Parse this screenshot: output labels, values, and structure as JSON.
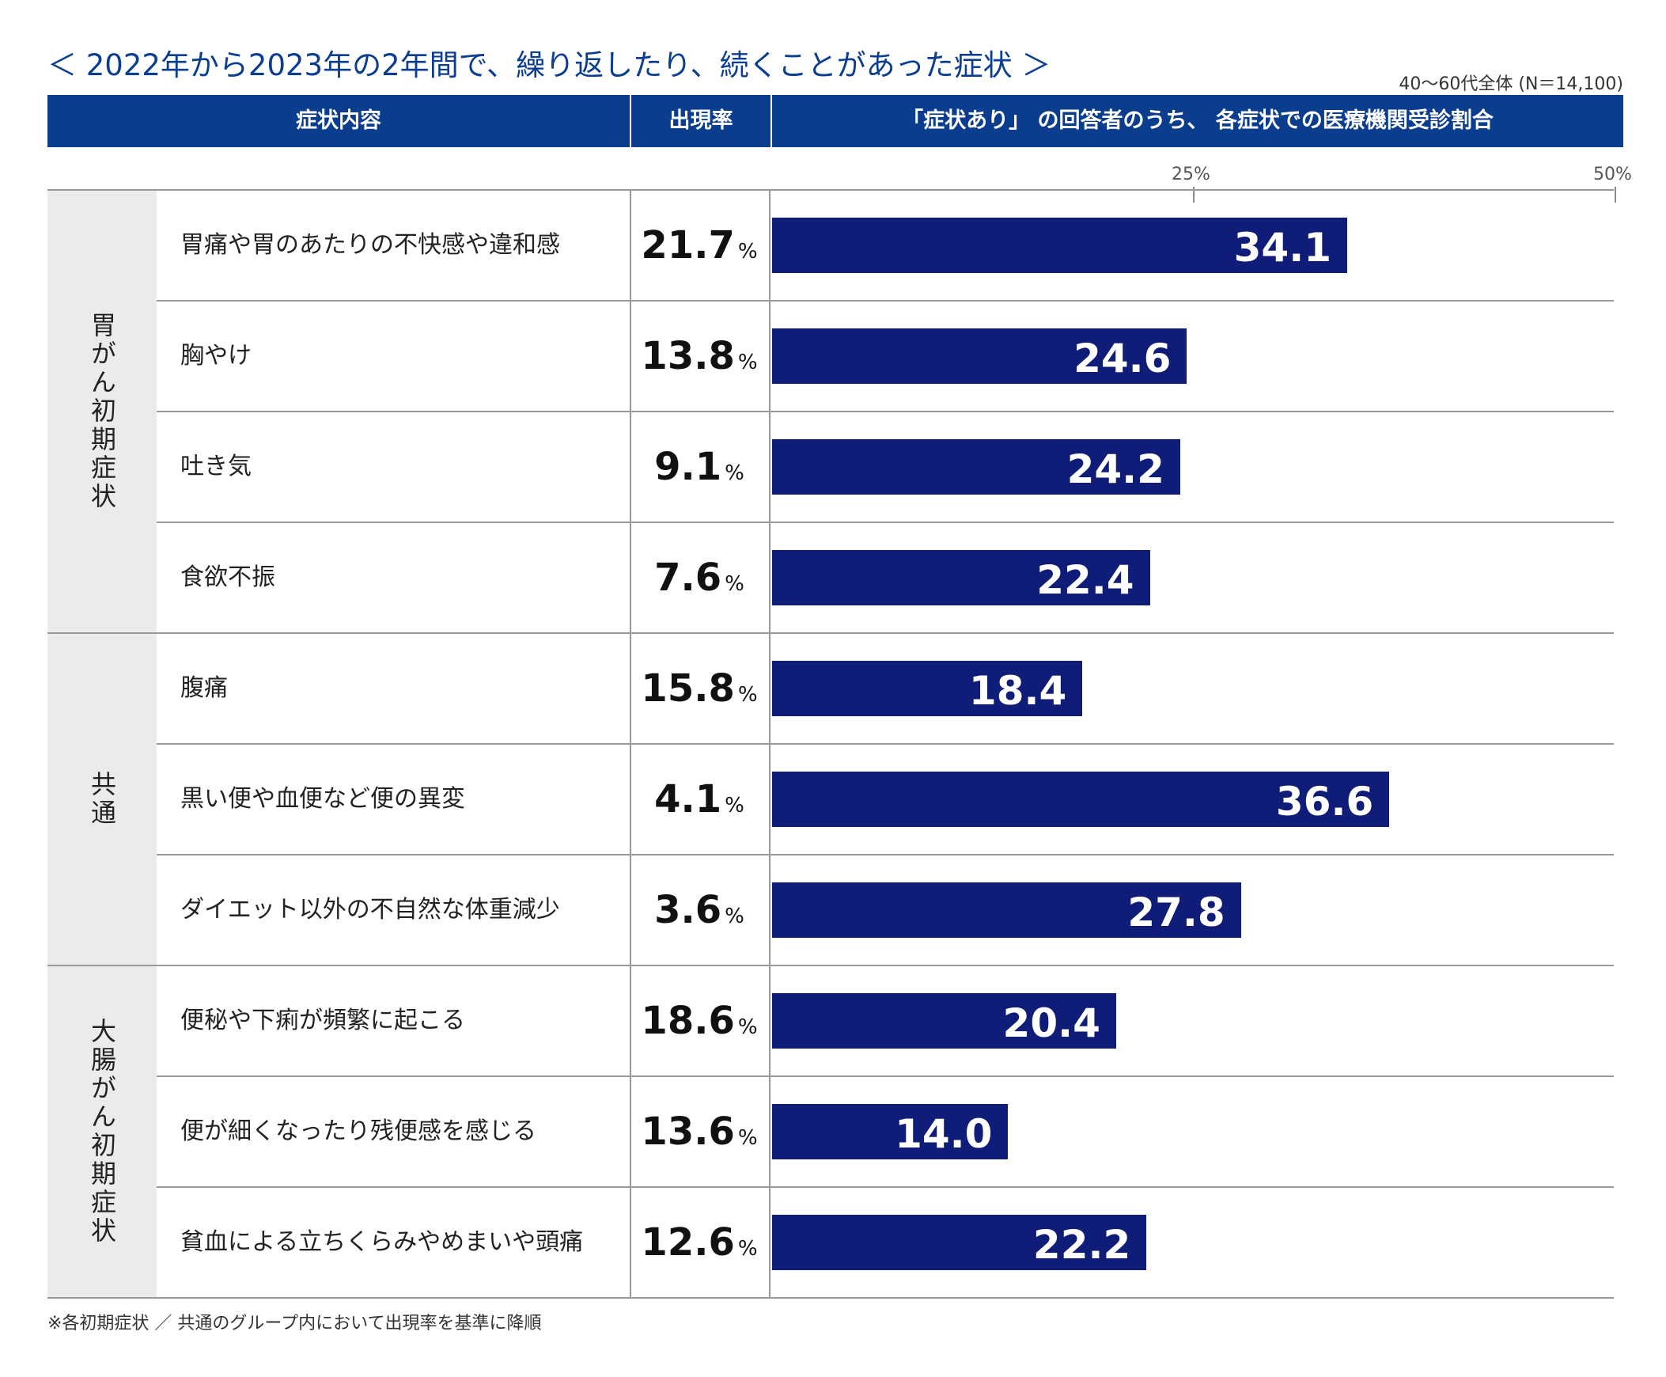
{
  "title": "＜ 2022年から2023年の2年間で、繰り返したり、続くことがあった症状 ＞",
  "sample_note": "40〜60代全体 (N＝14,100)",
  "header": {
    "col_symptom": "症状内容",
    "col_rate": "出現率",
    "col_share": "「症状あり」 の回答者のうち、 各症状での医療機関受診割合"
  },
  "rate_unit": "%",
  "footnote": "※各初期症状 ／ 共通のグループ内において出現率を基準に降順",
  "colors": {
    "header_bg": "#0b3d8e",
    "bar": "#0f1d78",
    "group_bg": "#ebebeb",
    "title": "#0b3d91"
  },
  "chart_data": {
    "type": "bar",
    "orientation": "horizontal",
    "xlim": [
      0,
      50
    ],
    "ticks": [
      "25%",
      "50%"
    ],
    "tick_values": [
      25,
      50
    ],
    "groups": [
      {
        "name": "胃がん初期症状",
        "rows": [
          {
            "label": "胃痛や胃のあたりの不快感や違和感",
            "rate": "21.7",
            "value": 34.1
          },
          {
            "label": "胸やけ",
            "rate": "13.8",
            "value": 24.6
          },
          {
            "label": "吐き気",
            "rate": "9.1",
            "value": 24.2
          },
          {
            "label": "食欲不振",
            "rate": "7.6",
            "value": 22.4
          }
        ]
      },
      {
        "name": "共通",
        "rows": [
          {
            "label": "腹痛",
            "rate": "15.8",
            "value": 18.4
          },
          {
            "label": "黒い便や血便など便の異変",
            "rate": "4.1",
            "value": 36.6
          },
          {
            "label": "ダイエット以外の不自然な体重減少",
            "rate": "3.6",
            "value": 27.8
          }
        ]
      },
      {
        "name": "大腸がん初期症状",
        "rows": [
          {
            "label": "便秘や下痢が頻繁に起こる",
            "rate": "18.6",
            "value": 20.4
          },
          {
            "label": "便が細くなったり残便感を感じる",
            "rate": "13.6",
            "value": 14.0
          },
          {
            "label": "貧血による立ちくらみやめまいや頭痛",
            "rate": "12.6",
            "value": 22.2
          }
        ]
      }
    ]
  }
}
